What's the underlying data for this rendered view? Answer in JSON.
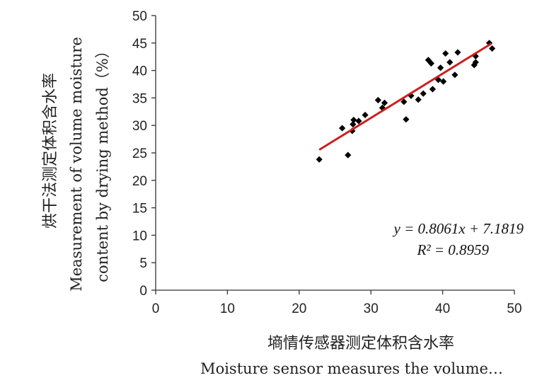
{
  "chart_data": {
    "type": "scatter",
    "xlim": [
      0,
      50
    ],
    "ylim": [
      0,
      50
    ],
    "xticks": [
      "0",
      "10",
      "20",
      "30",
      "40",
      "50"
    ],
    "yticks": [
      "0",
      "5",
      "10",
      "15",
      "20",
      "25",
      "30",
      "35",
      "40",
      "45",
      "50"
    ],
    "xlabel_zh": "墒情传感器测定体积含水率",
    "xlabel_en": "Moisture sensor measures the volume…",
    "ylabel_zh": "烘干法测定体积含水率",
    "ylabel_en_1": "Measurement  of volume moisture",
    "ylabel_en_2": "content by drying method（%）",
    "grid": false,
    "legend": "none",
    "point_color": "#000000",
    "trendline_color": "#cc1f1f",
    "trendline": {
      "slope": 0.8061,
      "intercept": 7.1819,
      "x_range": [
        22.8,
        46.8
      ]
    },
    "equation_text": "y = 0.8061x + 7.1819",
    "r2_text": "R² = 0.8959",
    "points": [
      [
        22.8,
        23.8
      ],
      [
        26.8,
        24.6
      ],
      [
        26.0,
        29.5
      ],
      [
        27.4,
        29.0
      ],
      [
        27.5,
        30.2
      ],
      [
        27.6,
        31.0
      ],
      [
        28.3,
        30.8
      ],
      [
        29.2,
        31.9
      ],
      [
        31.0,
        34.6
      ],
      [
        31.6,
        33.2
      ],
      [
        31.9,
        34.1
      ],
      [
        34.6,
        34.3
      ],
      [
        34.9,
        31.1
      ],
      [
        35.6,
        35.4
      ],
      [
        36.6,
        34.7
      ],
      [
        37.3,
        35.8
      ],
      [
        38.0,
        41.9
      ],
      [
        38.4,
        41.3
      ],
      [
        38.6,
        36.6
      ],
      [
        39.4,
        38.3
      ],
      [
        39.7,
        40.5
      ],
      [
        40.1,
        38.0
      ],
      [
        40.4,
        43.1
      ],
      [
        41.0,
        41.5
      ],
      [
        41.7,
        39.2
      ],
      [
        42.1,
        43.3
      ],
      [
        44.4,
        41.0
      ],
      [
        44.6,
        41.5
      ],
      [
        44.6,
        42.6
      ],
      [
        46.5,
        45.0
      ],
      [
        46.9,
        44.0
      ]
    ]
  }
}
